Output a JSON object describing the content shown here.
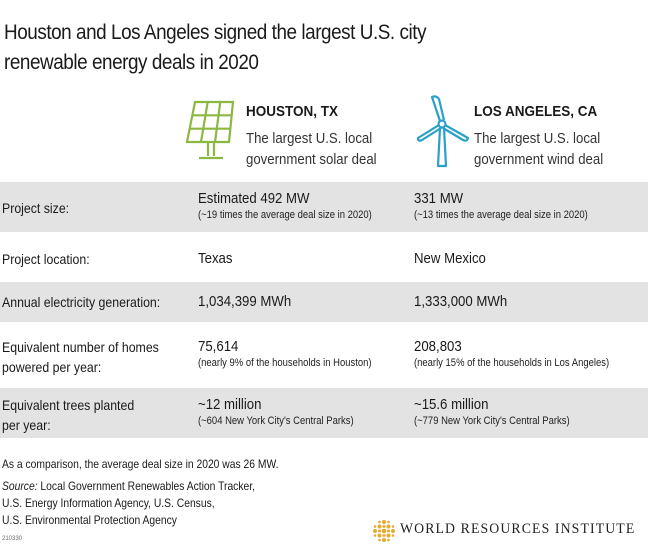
{
  "title": {
    "line1": "Houston and Los Angeles signed the largest U.S. city",
    "line2": "renewable energy deals in 2020"
  },
  "cities": [
    {
      "name": "HOUSTON, TX",
      "desc_line1": "The largest U.S. local",
      "desc_line2": "government solar deal",
      "icon": "solar-panel-icon"
    },
    {
      "name": "LOS ANGELES, CA",
      "desc_line1": "The largest U.S. local",
      "desc_line2": "government wind deal",
      "icon": "wind-turbine-icon"
    }
  ],
  "rows": [
    {
      "label_line1": "Project size:",
      "label_line2": "",
      "houston": "Estimated 492 MW",
      "houston_note": "(~19 times the average deal size in 2020)",
      "la": "331 MW",
      "la_note": "(~13 times the average deal size in 2020)"
    },
    {
      "label_line1": "Project location:",
      "label_line2": "",
      "houston": "Texas",
      "houston_note": "",
      "la": "New Mexico",
      "la_note": ""
    },
    {
      "label_line1": "Annual electricity generation:",
      "label_line2": "",
      "houston": "1,034,399 MWh",
      "houston_note": "",
      "la": "1,333,000 MWh",
      "la_note": ""
    },
    {
      "label_line1": "Equivalent number of homes",
      "label_line2": "powered per year:",
      "houston": "75,614",
      "houston_note": "(nearly 9% of the households in Houston)",
      "la": "208,803",
      "la_note": "(nearly 15% of the households in Los Angeles)"
    },
    {
      "label_line1": "Equivalent trees planted",
      "label_line2": "per year:",
      "houston": "~12 million",
      "houston_note": "(~604 New York City's Central Parks)",
      "la": "~15.6 million",
      "la_note": "(~779 New York City's Central Parks)"
    }
  ],
  "footer": {
    "comparison": "As a comparison, the average deal size in 2020 was 26 MW.",
    "source_label": "Source:",
    "source_line1": " Local Government Renewables Action Tracker,",
    "source_line2": "U.S. Energy Information Agency, U.S. Census,",
    "source_line3": "U.S. Environmental Protection Agency",
    "code": "210330"
  },
  "logo": {
    "text": "WORLD RESOURCES INSTITUTE",
    "icon": "wri-logo-icon"
  },
  "colors": {
    "solar_icon": "#8db840",
    "wind_icon": "#2aa0c8",
    "row_shade": "#e3e3e3",
    "logo_accent": "#e8a92e"
  }
}
